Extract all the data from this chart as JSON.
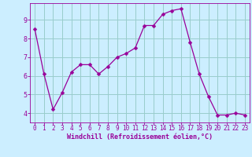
{
  "x": [
    0,
    1,
    2,
    3,
    4,
    5,
    6,
    7,
    8,
    9,
    10,
    11,
    12,
    13,
    14,
    15,
    16,
    17,
    18,
    19,
    20,
    21,
    22,
    23
  ],
  "y": [
    8.5,
    6.1,
    4.2,
    5.1,
    6.2,
    6.6,
    6.6,
    6.1,
    6.5,
    7.0,
    7.2,
    7.5,
    8.7,
    8.7,
    9.3,
    9.5,
    9.6,
    7.8,
    6.1,
    4.9,
    3.9,
    3.9,
    4.0,
    3.9
  ],
  "line_color": "#990099",
  "marker": "D",
  "marker_size": 2.5,
  "background_color": "#cceeff",
  "grid_color": "#99cccc",
  "xlabel": "Windchill (Refroidissement éolien,°C)",
  "xlabel_color": "#990099",
  "tick_color": "#990099",
  "xlim": [
    -0.5,
    23.5
  ],
  "ylim": [
    3.5,
    9.9
  ],
  "yticks": [
    4,
    5,
    6,
    7,
    8,
    9
  ],
  "xticks": [
    0,
    1,
    2,
    3,
    4,
    5,
    6,
    7,
    8,
    9,
    10,
    11,
    12,
    13,
    14,
    15,
    16,
    17,
    18,
    19,
    20,
    21,
    22,
    23
  ]
}
